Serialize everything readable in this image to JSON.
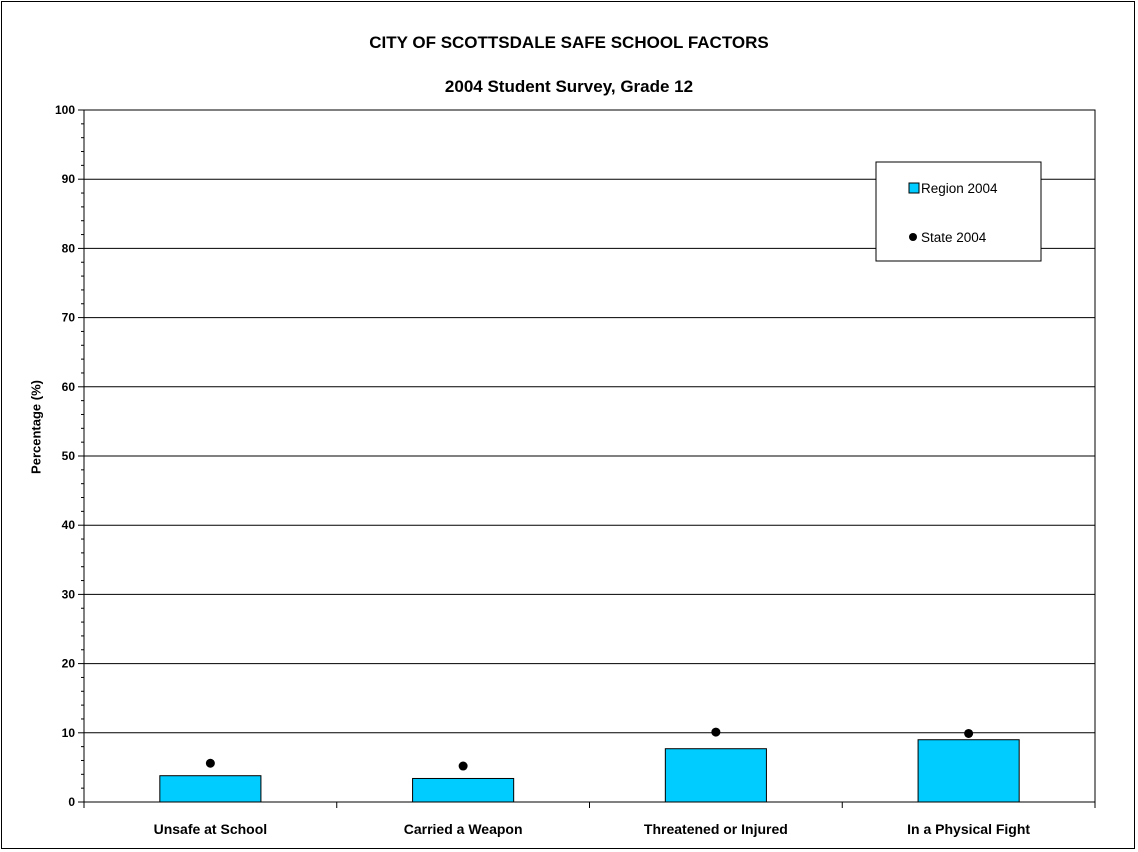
{
  "chart_data": {
    "type": "bar",
    "title": "CITY OF SCOTTSDALE SAFE SCHOOL FACTORS",
    "subtitle": "2004 Student Survey, Grade 12",
    "ylabel": "Percentage (%)",
    "xlabel": "",
    "ylim": [
      0,
      100
    ],
    "yticks": [
      "0",
      "10",
      "20",
      "30",
      "40",
      "50",
      "60",
      "70",
      "80",
      "90",
      "100"
    ],
    "grid": "horizontal",
    "legend_position": "top-right",
    "categories": [
      "Unsafe at School",
      "Carried a Weapon",
      "Threatened or Injured",
      "In a Physical Fight"
    ],
    "series": [
      {
        "name": "Region 2004",
        "kind": "bar",
        "color": "#00CCFF",
        "values": [
          3.8,
          3.4,
          7.7,
          9.0
        ]
      },
      {
        "name": "State 2004",
        "kind": "marker",
        "color": "#000000",
        "values": [
          5.6,
          5.2,
          10.1,
          9.9
        ]
      }
    ]
  }
}
